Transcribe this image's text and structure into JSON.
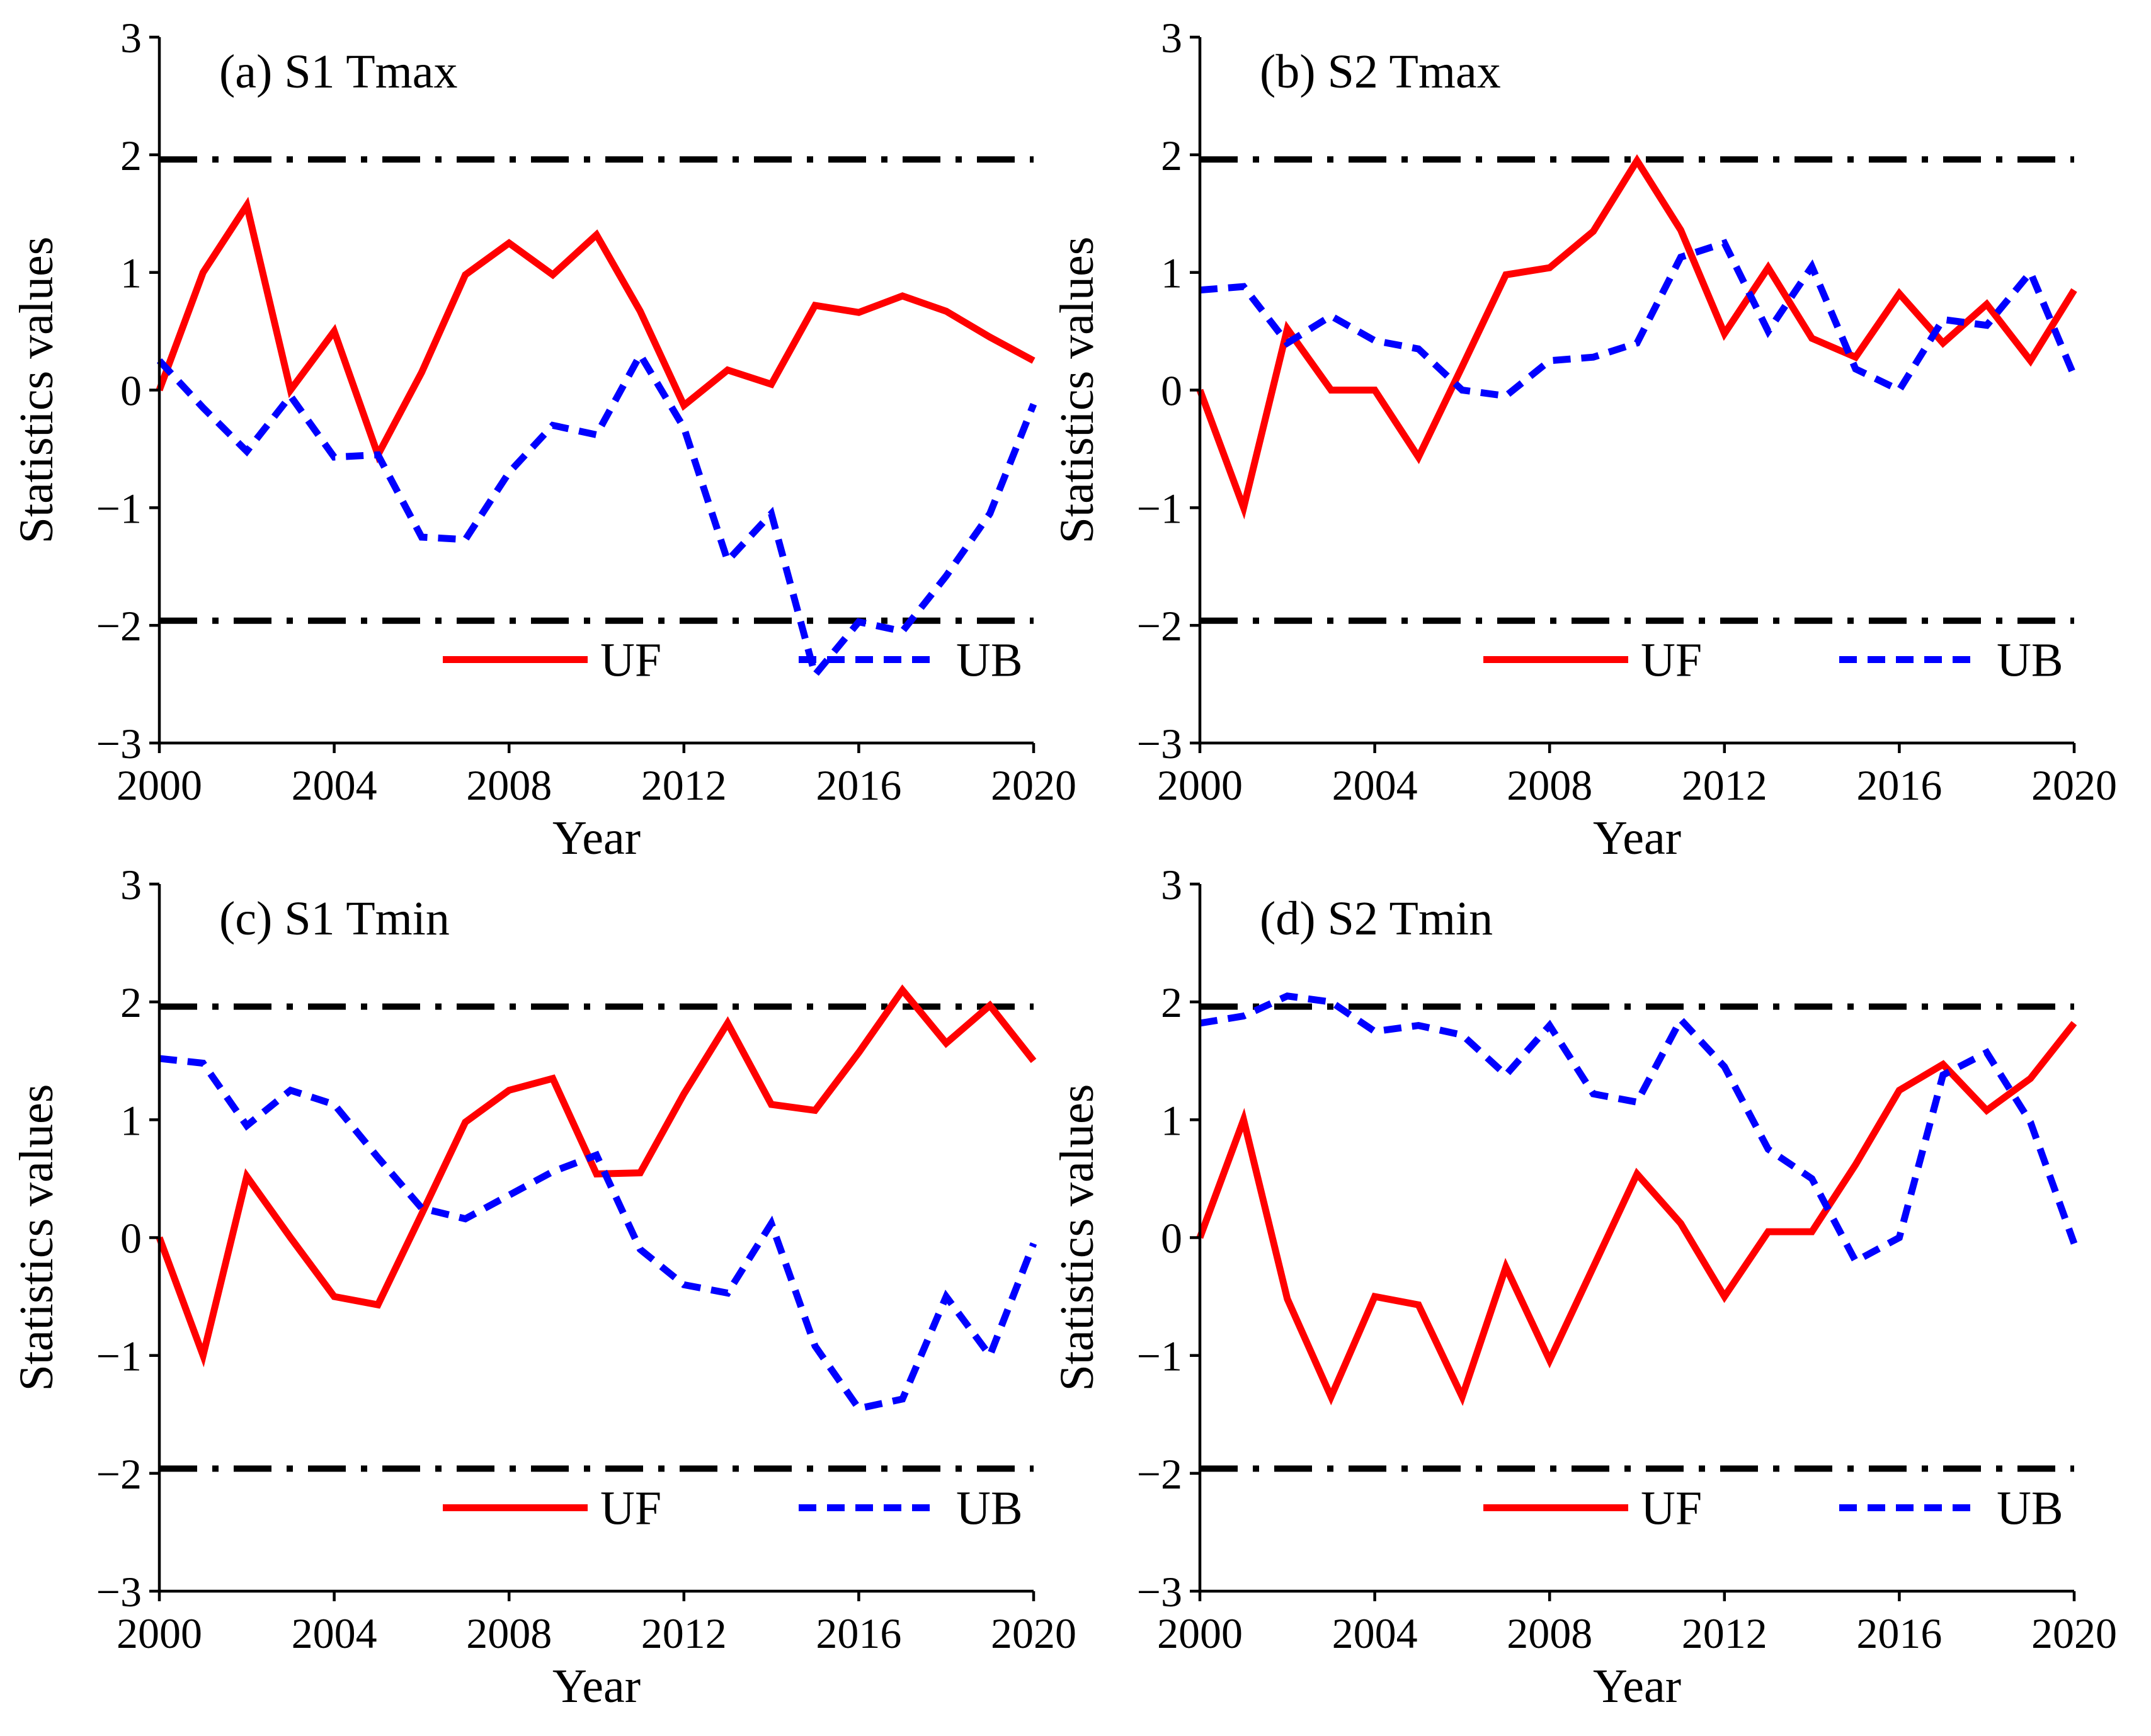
{
  "colors": {
    "uf": "#ff0000",
    "ub": "#0000ff",
    "threshold": "#000000",
    "axis": "#000000"
  },
  "chart_data": [
    {
      "type": "line",
      "title": "(a) S1 Tmax",
      "xlabel": "Year",
      "ylabel": "Statistics values",
      "xlim": [
        2000,
        2020
      ],
      "ylim": [
        -3,
        3
      ],
      "xticks": [
        "2000",
        "2004",
        "2008",
        "2012",
        "2016",
        "2020"
      ],
      "yticks": [
        "3",
        "2",
        "1",
        "0",
        "−1",
        "−2",
        "−3"
      ],
      "thresholds": [
        1.96,
        -1.96
      ],
      "legend": {
        "position": "bottom",
        "entries": [
          "UF",
          "UB"
        ]
      },
      "x": [
        2000,
        2001,
        2002,
        2003,
        2004,
        2005,
        2006,
        2007,
        2008,
        2009,
        2010,
        2011,
        2012,
        2013,
        2014,
        2015,
        2016,
        2017,
        2018,
        2019,
        2020
      ],
      "series": [
        {
          "name": "UF",
          "style": "solid",
          "values": [
            0.0,
            1.0,
            1.57,
            0.0,
            0.5,
            -0.55,
            0.15,
            0.98,
            1.25,
            0.98,
            1.32,
            0.67,
            -0.13,
            0.17,
            0.05,
            0.72,
            0.66,
            0.8,
            0.67,
            0.45,
            0.25
          ]
        },
        {
          "name": "UB",
          "style": "dashed",
          "values": [
            0.25,
            -0.15,
            -0.52,
            -0.05,
            -0.57,
            -0.55,
            -1.25,
            -1.27,
            -0.7,
            -0.3,
            -0.38,
            0.3,
            -0.32,
            -1.45,
            -1.05,
            -2.42,
            -1.97,
            -2.05,
            -1.58,
            -1.05,
            -0.12
          ]
        }
      ]
    },
    {
      "type": "line",
      "title": "(b) S2 Tmax",
      "xlabel": "Year",
      "ylabel": "Statistics values",
      "xlim": [
        2000,
        2020
      ],
      "ylim": [
        -3,
        3
      ],
      "xticks": [
        "2000",
        "2004",
        "2008",
        "2012",
        "2016",
        "2020"
      ],
      "yticks": [
        "3",
        "2",
        "1",
        "0",
        "−1",
        "−2",
        "−3"
      ],
      "thresholds": [
        1.96,
        -1.96
      ],
      "legend": {
        "position": "bottom",
        "entries": [
          "UF",
          "UB"
        ]
      },
      "x": [
        2000,
        2001,
        2002,
        2003,
        2004,
        2005,
        2006,
        2007,
        2008,
        2009,
        2010,
        2011,
        2012,
        2013,
        2014,
        2015,
        2016,
        2017,
        2018,
        2019,
        2020
      ],
      "series": [
        {
          "name": "UF",
          "style": "solid",
          "values": [
            0.0,
            -1.0,
            0.52,
            0.0,
            0.0,
            -0.57,
            0.2,
            0.98,
            1.04,
            1.35,
            1.95,
            1.36,
            0.48,
            1.04,
            0.44,
            0.28,
            0.82,
            0.4,
            0.73,
            0.25,
            0.85
          ]
        },
        {
          "name": "UB",
          "style": "dashed",
          "values": [
            0.85,
            0.88,
            0.4,
            0.63,
            0.42,
            0.35,
            0.0,
            -0.05,
            0.25,
            0.28,
            0.4,
            1.13,
            1.25,
            0.5,
            1.05,
            0.18,
            0.0,
            0.6,
            0.55,
            1.0,
            0.12
          ]
        }
      ]
    },
    {
      "type": "line",
      "title": "(c) S1 Tmin",
      "xlabel": "Year",
      "ylabel": "Statistics values",
      "xlim": [
        2000,
        2020
      ],
      "ylim": [
        -3,
        3
      ],
      "xticks": [
        "2000",
        "2004",
        "2008",
        "2012",
        "2016",
        "2020"
      ],
      "yticks": [
        "3",
        "2",
        "1",
        "0",
        "−1",
        "−2",
        "−3"
      ],
      "thresholds": [
        1.96,
        -1.96
      ],
      "legend": {
        "position": "bottom",
        "entries": [
          "UF",
          "UB"
        ]
      },
      "x": [
        2000,
        2001,
        2002,
        2003,
        2004,
        2005,
        2006,
        2007,
        2008,
        2009,
        2010,
        2011,
        2012,
        2013,
        2014,
        2015,
        2016,
        2017,
        2018,
        2019,
        2020
      ],
      "series": [
        {
          "name": "UF",
          "style": "solid",
          "values": [
            0.0,
            -1.0,
            0.52,
            0.0,
            -0.5,
            -0.57,
            0.2,
            0.98,
            1.25,
            1.35,
            0.54,
            0.55,
            1.22,
            1.82,
            1.13,
            1.08,
            1.57,
            2.1,
            1.65,
            1.97,
            1.5
          ]
        },
        {
          "name": "UB",
          "style": "dashed",
          "values": [
            1.52,
            1.48,
            0.95,
            1.25,
            1.13,
            0.68,
            0.25,
            0.16,
            0.36,
            0.56,
            0.7,
            -0.1,
            -0.4,
            -0.47,
            0.12,
            -0.92,
            -1.45,
            -1.37,
            -0.5,
            -1.0,
            -0.05
          ]
        }
      ]
    },
    {
      "type": "line",
      "title": "(d) S2 Tmin",
      "xlabel": "Year",
      "ylabel": "Statistics values",
      "xlim": [
        2000,
        2020
      ],
      "ylim": [
        -3,
        3
      ],
      "xticks": [
        "2000",
        "2004",
        "2008",
        "2012",
        "2016",
        "2020"
      ],
      "yticks": [
        "3",
        "2",
        "1",
        "0",
        "−1",
        "−2",
        "−3"
      ],
      "thresholds": [
        1.96,
        -1.96
      ],
      "legend": {
        "position": "bottom",
        "entries": [
          "UF",
          "UB"
        ]
      },
      "x": [
        2000,
        2001,
        2002,
        2003,
        2004,
        2005,
        2006,
        2007,
        2008,
        2009,
        2010,
        2011,
        2012,
        2013,
        2014,
        2015,
        2016,
        2017,
        2018,
        2019,
        2020
      ],
      "series": [
        {
          "name": "UF",
          "style": "solid",
          "values": [
            0.0,
            1.0,
            -0.52,
            -1.35,
            -0.5,
            -0.57,
            -1.35,
            -0.25,
            -1.04,
            -0.25,
            0.54,
            0.12,
            -0.5,
            0.05,
            0.05,
            0.62,
            1.25,
            1.47,
            1.08,
            1.35,
            1.82
          ]
        },
        {
          "name": "UB",
          "style": "dashed",
          "values": [
            1.82,
            1.88,
            2.05,
            2.0,
            1.75,
            1.8,
            1.72,
            1.38,
            1.8,
            1.22,
            1.15,
            1.85,
            1.45,
            0.75,
            0.5,
            -0.2,
            0.0,
            1.38,
            1.57,
            0.98,
            -0.05
          ]
        }
      ]
    }
  ]
}
